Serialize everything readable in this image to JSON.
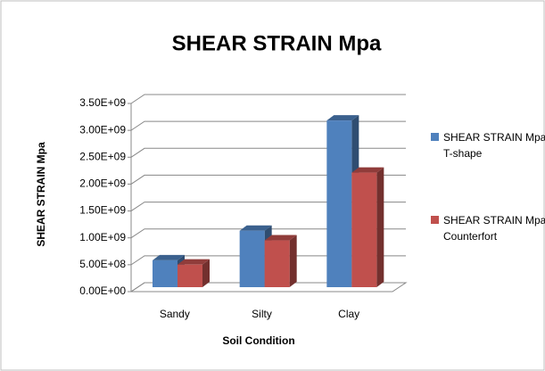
{
  "chart_data": {
    "type": "bar3d",
    "title": "SHEAR STRAIN  Mpa",
    "x_label": "Soil Condition",
    "y_label": "SHEAR STRAIN  Mpa",
    "categories": [
      "Sandy",
      "Silty",
      "Clay"
    ],
    "series": [
      {
        "name": "SHEAR STRAIN Mpa T-shape",
        "color": "#4f81bd",
        "values": [
          500000000,
          1050000000,
          3100000000
        ]
      },
      {
        "name": "SHEAR STRAIN Mpa Counterfort",
        "color": "#c0504d",
        "values": [
          420000000,
          870000000,
          2130000000
        ]
      }
    ],
    "ylim": [
      0,
      3500000000
    ],
    "yticks": [
      {
        "value": 0,
        "label": "0.00E+00"
      },
      {
        "value": 500000000,
        "label": "5.00E+08"
      },
      {
        "value": 1000000000,
        "label": "1.00E+09"
      },
      {
        "value": 1500000000,
        "label": "1.50E+09"
      },
      {
        "value": 2000000000,
        "label": "2.00E+09"
      },
      {
        "value": 2500000000,
        "label": "2.50E+09"
      },
      {
        "value": 3000000000,
        "label": "3.00E+09"
      },
      {
        "value": 3500000000,
        "label": "3.50E+09"
      }
    ],
    "grid": true,
    "legend": "right"
  }
}
